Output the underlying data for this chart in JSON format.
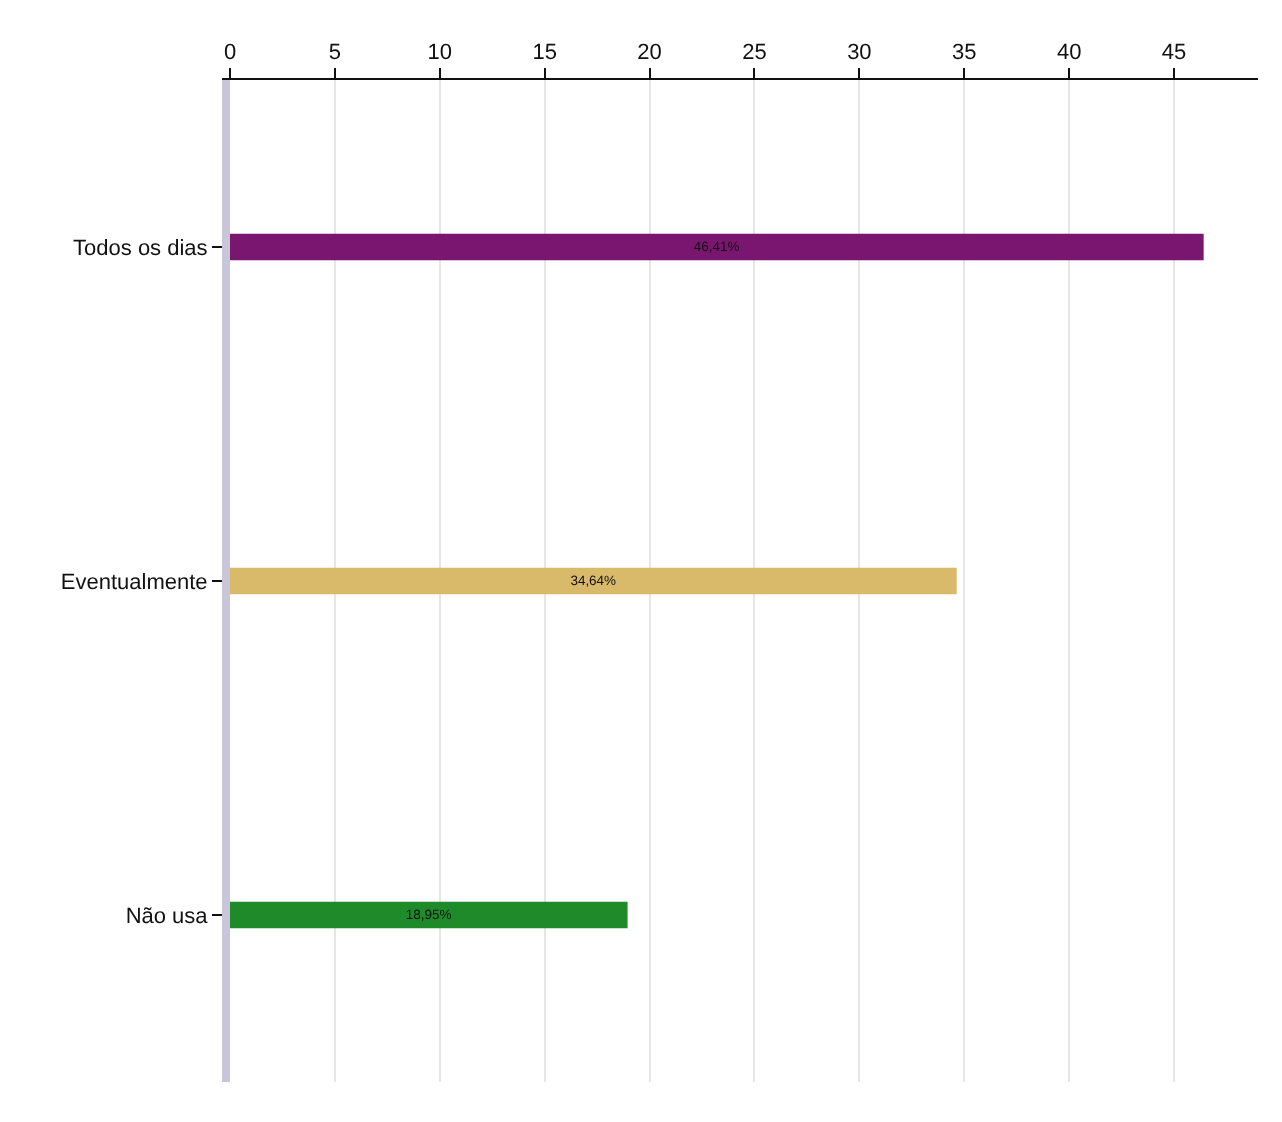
{
  "chart_data": {
    "type": "bar",
    "orientation": "horizontal",
    "categories": [
      "Todos os dias",
      "Eventualmente",
      "Não usa"
    ],
    "values": [
      46.41,
      34.64,
      18.95
    ],
    "colors": [
      "#7a1670",
      "#d9b96a",
      "#1e8a2a"
    ],
    "value_labels": [
      "46,41%",
      "34,64%",
      "18,95%"
    ],
    "xlim": [
      0,
      49
    ],
    "xticks": [
      0,
      5,
      10,
      15,
      20,
      25,
      30,
      35,
      40,
      45
    ],
    "grid": "x",
    "legend": false
  }
}
